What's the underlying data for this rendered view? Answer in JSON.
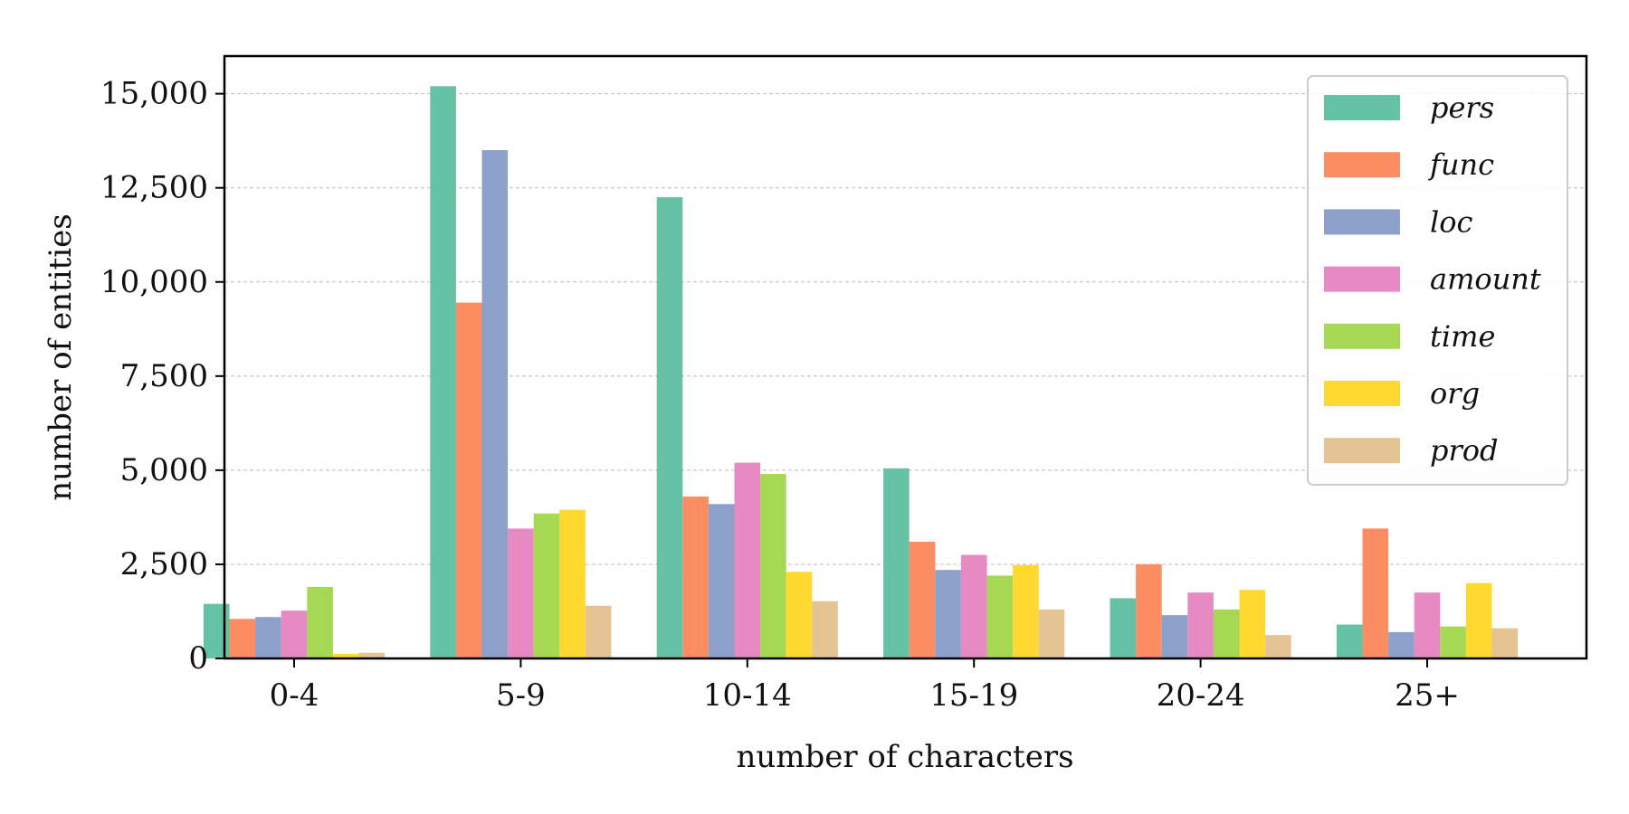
{
  "chart_data": {
    "type": "bar",
    "title": "",
    "xlabel": "number of characters",
    "ylabel": "number of entities",
    "categories": [
      "0-4",
      "5-9",
      "10-14",
      "15-19",
      "20-24",
      "25+"
    ],
    "ylim": [
      0,
      16000
    ],
    "yticks": [
      0,
      2500,
      5000,
      7500,
      10000,
      12500,
      15000
    ],
    "ytick_labels": [
      "0",
      "2,500",
      "5,000",
      "7,500",
      "10,000",
      "12,500",
      "15,000"
    ],
    "grid": "horizontal dashed",
    "legend_position": "top-right",
    "series": [
      {
        "name": "pers",
        "color": "#66c2a5",
        "values": [
          1450,
          15200,
          12250,
          5050,
          1600,
          900
        ]
      },
      {
        "name": "func",
        "color": "#fc8d62",
        "values": [
          1050,
          9450,
          4300,
          3100,
          2500,
          3450
        ]
      },
      {
        "name": "loc",
        "color": "#8da0cb",
        "values": [
          1100,
          13500,
          4100,
          2350,
          1150,
          700
        ]
      },
      {
        "name": "amount",
        "color": "#e78ac3",
        "values": [
          1270,
          3450,
          5200,
          2750,
          1750,
          1750
        ]
      },
      {
        "name": "time",
        "color": "#a6d854",
        "values": [
          1900,
          3850,
          4900,
          2200,
          1300,
          850
        ]
      },
      {
        "name": "org",
        "color": "#ffd92f",
        "values": [
          120,
          3950,
          2300,
          2480,
          1820,
          2000
        ]
      },
      {
        "name": "prod",
        "color": "#e5c494",
        "values": [
          150,
          1400,
          1520,
          1300,
          620,
          800
        ]
      }
    ]
  }
}
